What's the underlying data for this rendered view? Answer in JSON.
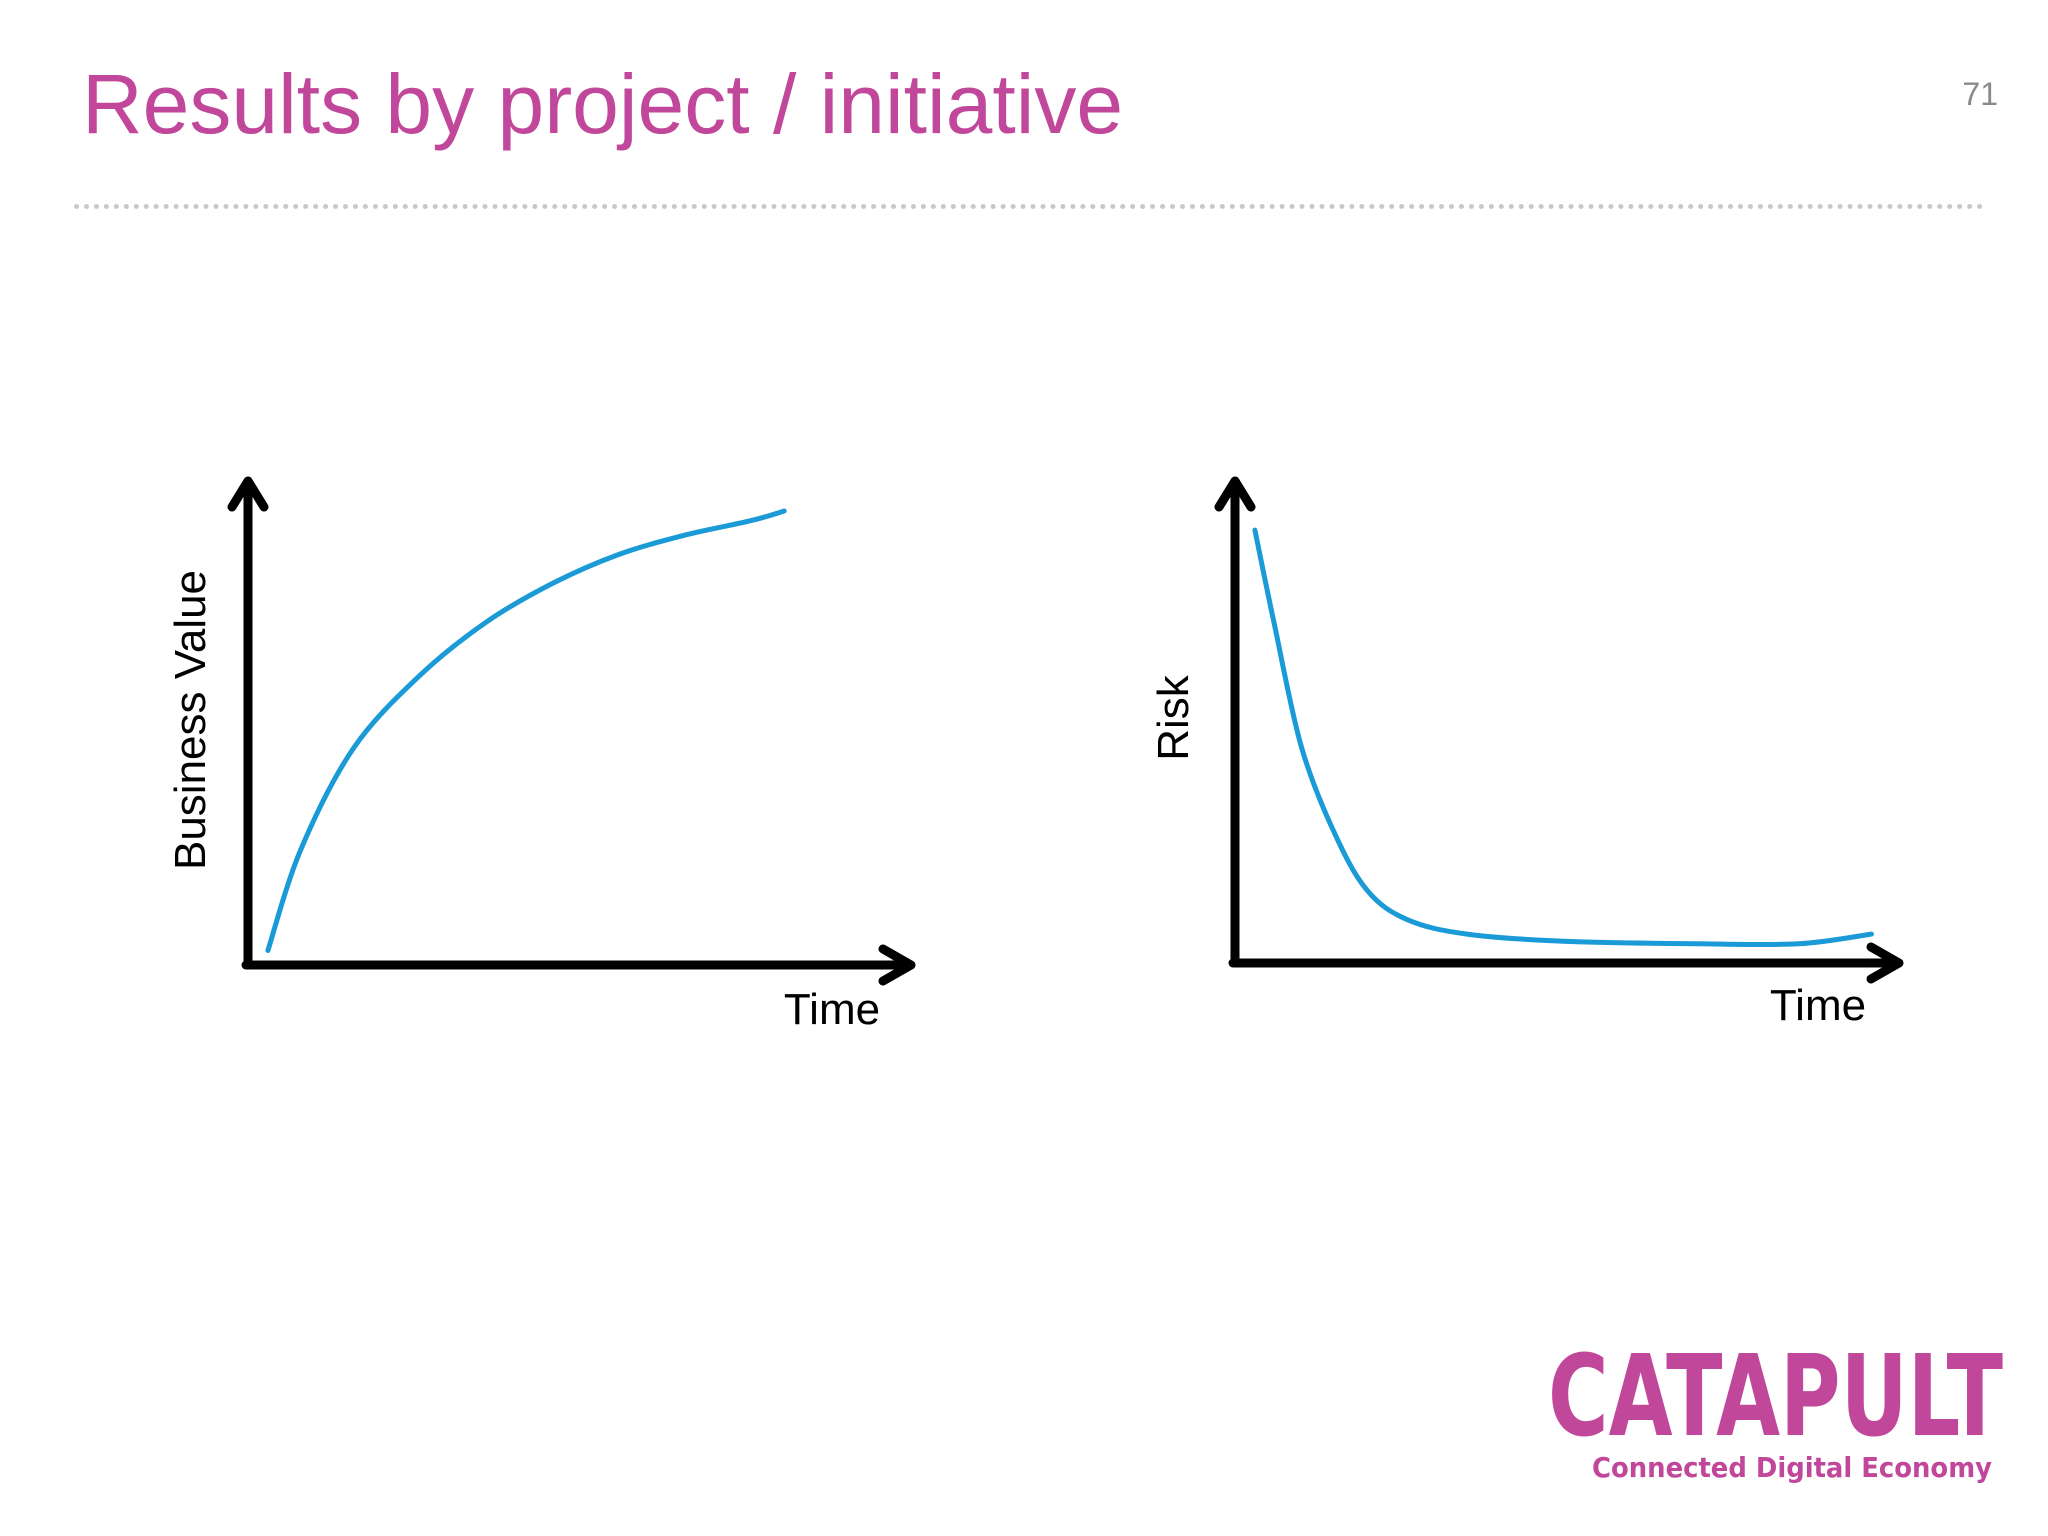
{
  "slide": {
    "title": "Results by project / initiative",
    "page_number": "71"
  },
  "colors": {
    "title": "#c1479a",
    "curve": "#1a9ad6",
    "axis": "#000000"
  },
  "chart_data": [
    {
      "type": "line",
      "title": "",
      "xlabel": "Time",
      "ylabel": "Business Value",
      "xlim": [
        0,
        1
      ],
      "ylim": [
        0,
        1
      ],
      "grid": false,
      "series": [
        {
          "x": [
            0.03,
            0.08,
            0.16,
            0.26,
            0.36,
            0.46,
            0.56,
            0.66,
            0.76,
            0.81
          ],
          "values": [
            0.03,
            0.24,
            0.45,
            0.6,
            0.71,
            0.79,
            0.85,
            0.89,
            0.92,
            0.94
          ]
        }
      ]
    },
    {
      "type": "line",
      "title": "",
      "xlabel": "Time",
      "ylabel": "Risk",
      "xlim": [
        0,
        1
      ],
      "ylim": [
        0,
        1
      ],
      "grid": false,
      "series": [
        {
          "x": [
            0.03,
            0.06,
            0.1,
            0.15,
            0.2,
            0.26,
            0.35,
            0.5,
            0.7,
            0.85,
            0.96
          ],
          "values": [
            0.9,
            0.7,
            0.45,
            0.27,
            0.15,
            0.09,
            0.06,
            0.045,
            0.04,
            0.04,
            0.06
          ]
        }
      ]
    }
  ],
  "logo": {
    "word": "CATAPULT",
    "tagline": "Connected Digital Economy"
  }
}
